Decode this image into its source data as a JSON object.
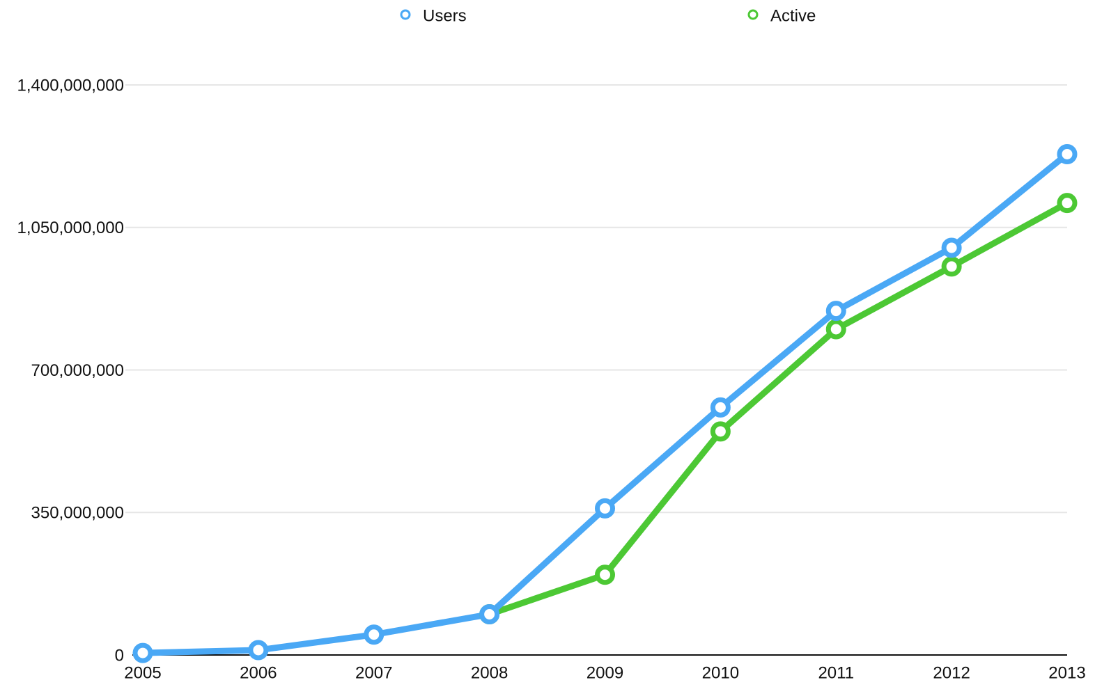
{
  "chart_data": {
    "type": "line",
    "categories": [
      "2005",
      "2006",
      "2007",
      "2008",
      "2009",
      "2010",
      "2011",
      "2012",
      "2013"
    ],
    "series": [
      {
        "name": "Users",
        "color": "#4aa8f5",
        "values": [
          5000000,
          12000000,
          50000000,
          100000000,
          360000000,
          608000000,
          845000000,
          1000000000,
          1230000000
        ]
      },
      {
        "name": "Active",
        "color": "#4cc834",
        "values": [
          null,
          null,
          null,
          100000000,
          197000000,
          549000000,
          800000000,
          954000000,
          1110000000
        ]
      }
    ],
    "ylim": [
      0,
      1400000000
    ],
    "yticks": [
      0,
      {
        "value": 350000000,
        "label": "350,000,000"
      },
      {
        "value": 700000000,
        "label": "700,000,000"
      },
      {
        "value": 1050000000,
        "label": "1,050,000,000"
      },
      {
        "value": 1400000000,
        "label": "1,400,000,000"
      }
    ],
    "grid": true,
    "legend": "top"
  }
}
